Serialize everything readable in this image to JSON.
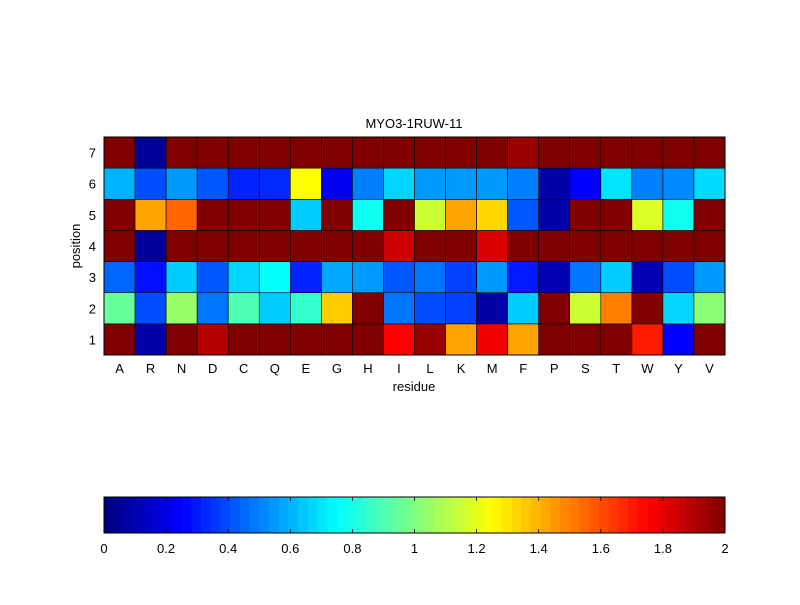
{
  "chart_data": {
    "type": "heatmap",
    "title": "MYO3-1RUW-11",
    "xlabel": "residue",
    "ylabel": "position",
    "x_categories": [
      "A",
      "R",
      "N",
      "D",
      "C",
      "Q",
      "E",
      "G",
      "H",
      "I",
      "L",
      "K",
      "M",
      "F",
      "P",
      "S",
      "T",
      "W",
      "Y",
      "V"
    ],
    "y_categories": [
      "1",
      "2",
      "3",
      "4",
      "5",
      "6",
      "7"
    ],
    "colormap": "jet",
    "clim": [
      0,
      2
    ],
    "colorbar": {
      "placement": "bottom",
      "ticks": [
        0,
        0.2,
        0.4,
        0.6,
        0.8,
        1,
        1.2,
        1.4,
        1.6,
        1.8,
        2
      ],
      "tick_labels": [
        "0",
        "0.2",
        "0.4",
        "0.6",
        "0.8",
        "1",
        "1.2",
        "1.4",
        "1.6",
        "1.8",
        "2"
      ]
    },
    "values_by_position": {
      "1": [
        2,
        0.08,
        2,
        1.9,
        2,
        2,
        2,
        2,
        2,
        1.75,
        1.95,
        1.43,
        1.78,
        1.43,
        2,
        2,
        2,
        1.7,
        0.25,
        2
      ],
      "2": [
        0.95,
        0.4,
        1.05,
        0.48,
        0.9,
        0.65,
        0.85,
        1.35,
        2,
        0.48,
        0.4,
        0.38,
        0.08,
        0.65,
        2,
        1.15,
        1.5,
        2,
        0.67,
        1.02
      ],
      "3": [
        0.45,
        0.28,
        0.65,
        0.42,
        0.67,
        0.76,
        0.32,
        0.58,
        0.55,
        0.42,
        0.48,
        0.38,
        0.55,
        0.3,
        0.1,
        0.48,
        0.65,
        0.1,
        0.4,
        0.55
      ],
      "4": [
        2,
        0.05,
        2,
        2,
        2,
        2,
        2,
        2,
        2,
        1.85,
        2,
        2,
        1.82,
        2,
        2,
        2,
        2,
        2,
        2,
        2
      ],
      "5": [
        2,
        1.43,
        1.55,
        2,
        2,
        2,
        0.65,
        2,
        0.78,
        2,
        1.15,
        1.43,
        1.33,
        0.42,
        0.08,
        2,
        2,
        1.18,
        0.78,
        2
      ],
      "6": [
        0.6,
        0.4,
        0.55,
        0.42,
        0.32,
        0.33,
        1.25,
        0.22,
        0.5,
        0.67,
        0.55,
        0.55,
        0.55,
        0.5,
        0.08,
        0.25,
        0.7,
        0.5,
        0.52,
        0.68
      ],
      "7": [
        2,
        0.05,
        2,
        2,
        2,
        2,
        2,
        2,
        2,
        2,
        2,
        2,
        2,
        1.95,
        2,
        2,
        2,
        2,
        2,
        2
      ]
    }
  }
}
